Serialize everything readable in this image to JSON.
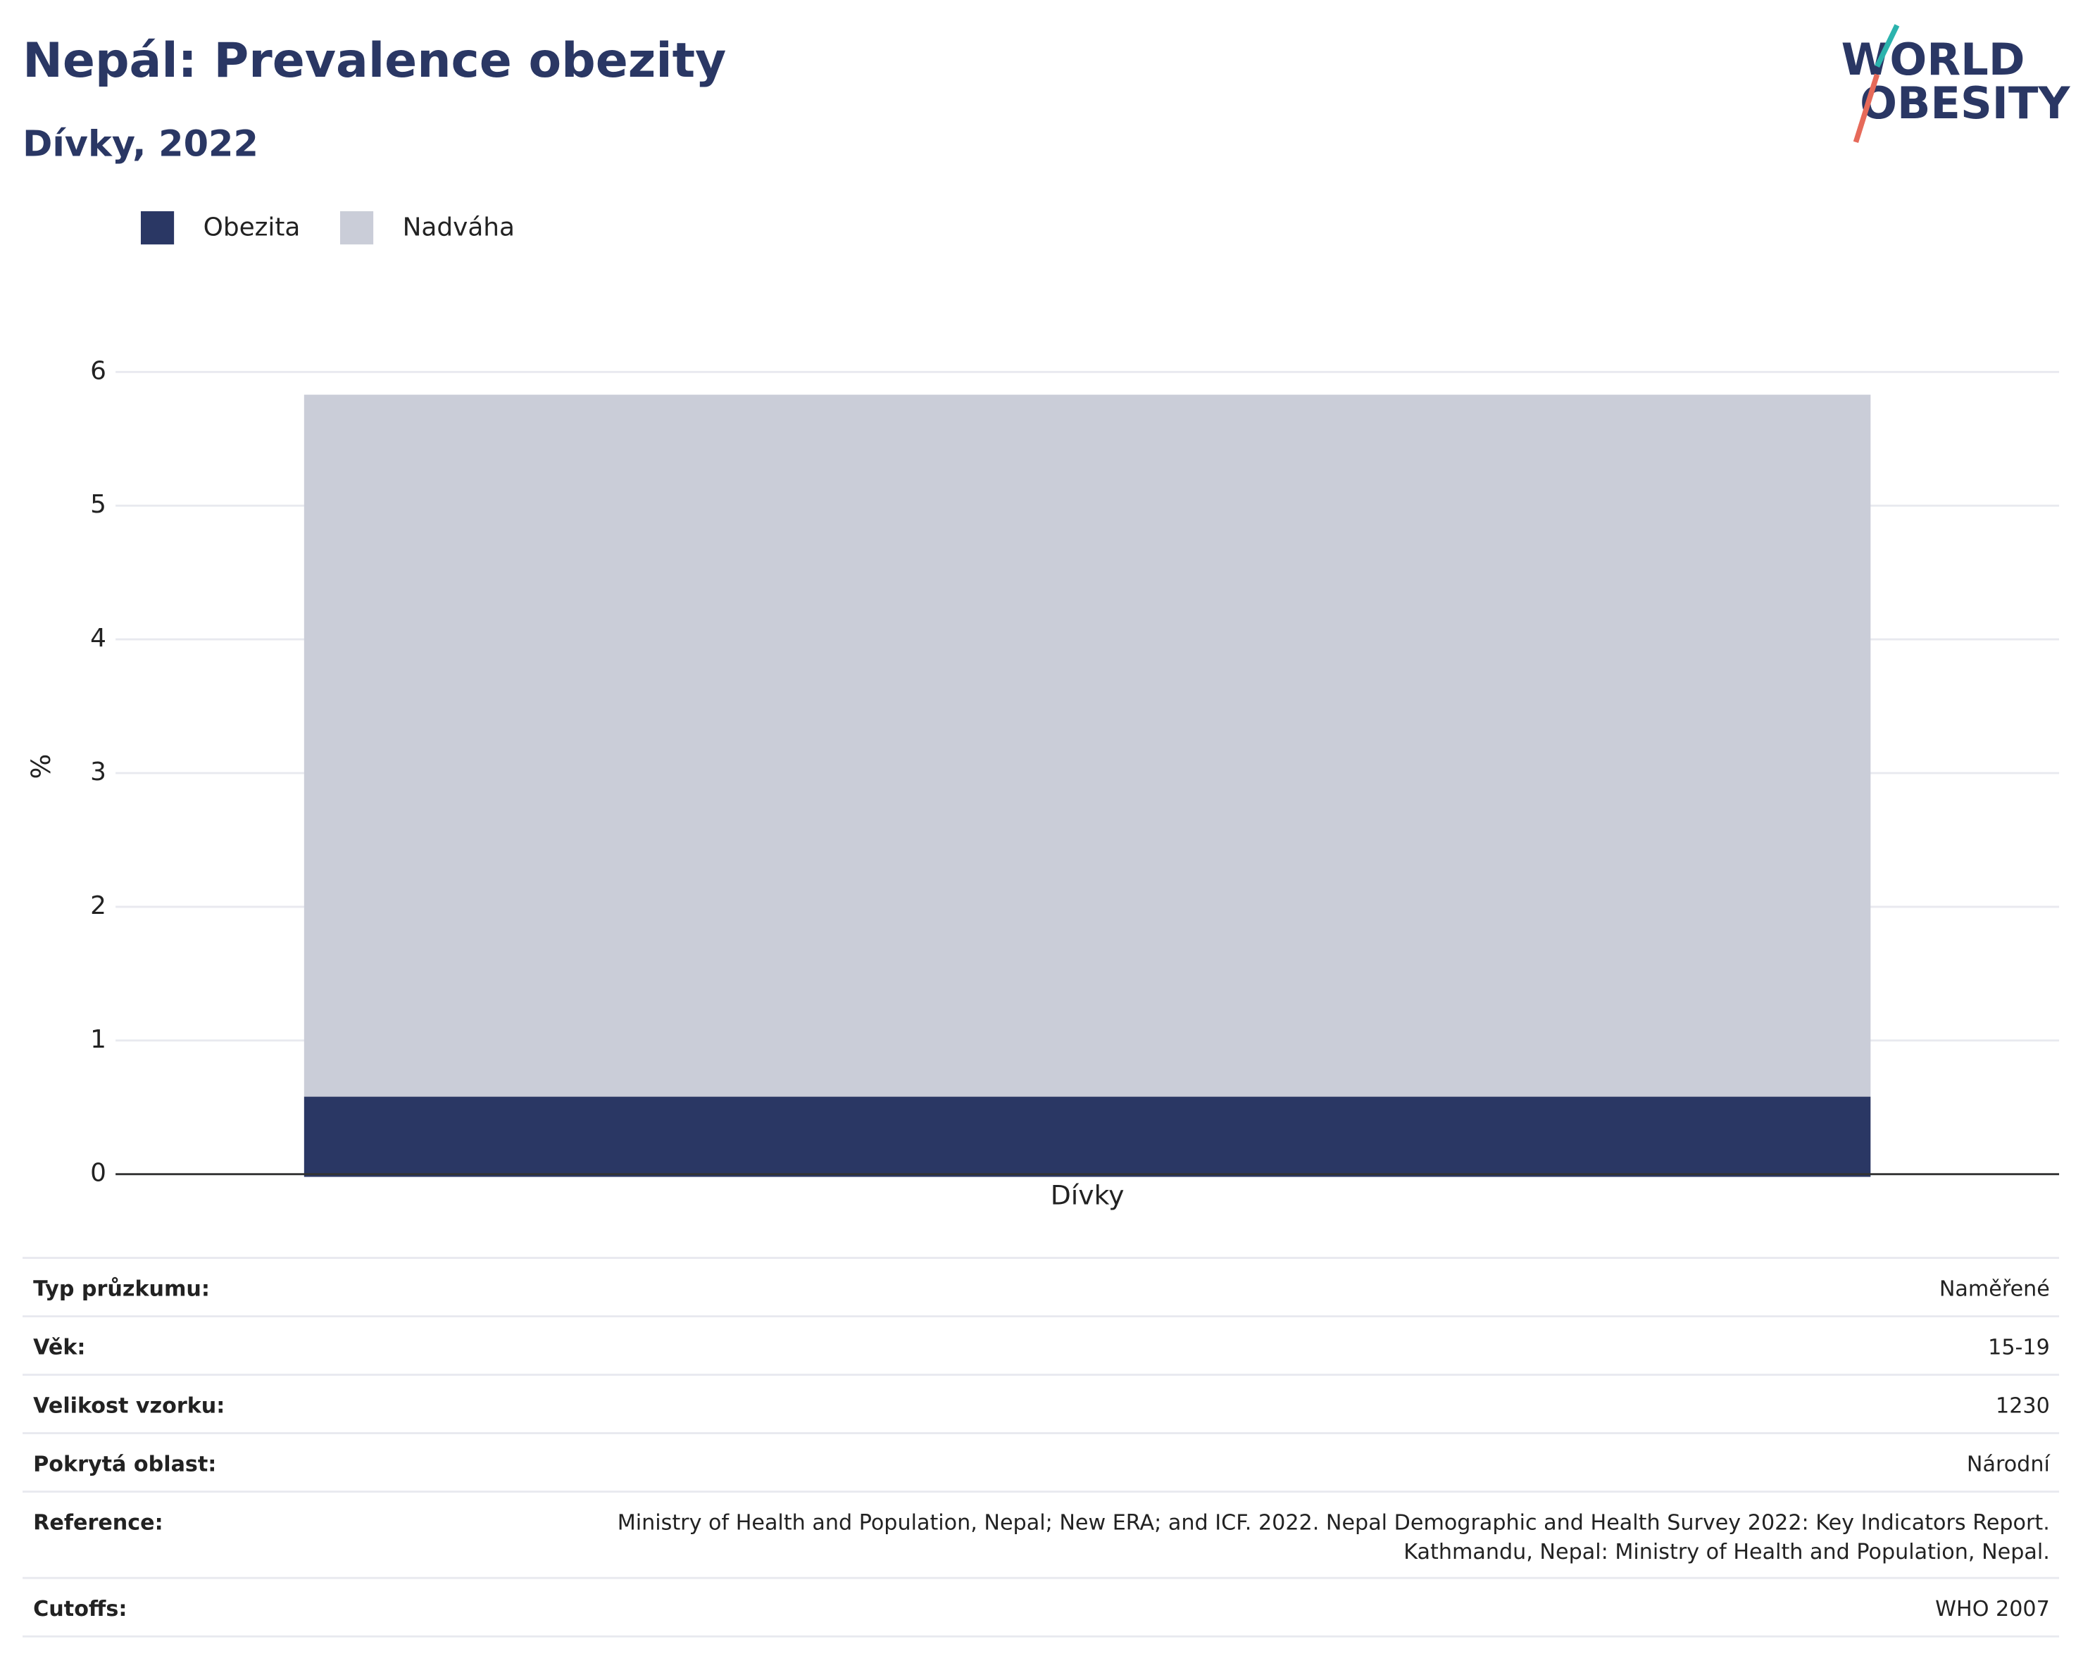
{
  "chart_data": {
    "type": "stacked_bar",
    "title": "Nepál: Prevalence obezity",
    "subtitle": "Dívky, 2022",
    "y_label": "%",
    "categories": [
      "Dívky"
    ],
    "series": [
      {
        "name": "Obezita",
        "color": "#2a3764",
        "values": [
          0.58
        ]
      },
      {
        "name": "Nadváha",
        "color": "#cacdd8",
        "values": [
          5.25
        ]
      }
    ],
    "ylim": [
      0,
      6
    ],
    "yticks": [
      0,
      1,
      2,
      3,
      4,
      5,
      6
    ],
    "grid": true,
    "legend": "top-left"
  },
  "logo": {
    "line1": "WORLD",
    "line2": "OBESITY"
  },
  "table": {
    "rows": [
      {
        "label": "Typ průzkumu:",
        "value": [
          "Naměřené"
        ]
      },
      {
        "label": "Věk:",
        "value": [
          "15-19"
        ]
      },
      {
        "label": "Velikost vzorku:",
        "value": [
          "1230"
        ]
      },
      {
        "label": "Pokrytá oblast:",
        "value": [
          "Národní"
        ]
      },
      {
        "label": "Reference:",
        "value": [
          "Ministry of Health and Population, Nepal; New ERA; and ICF. 2022. Nepal Demographic and Health Survey 2022: Key Indicators Report.",
          "Kathmandu, Nepal: Ministry of Health and Population, Nepal."
        ]
      },
      {
        "label": "Cutoffs:",
        "value": [
          "WHO 2007"
        ]
      }
    ]
  }
}
